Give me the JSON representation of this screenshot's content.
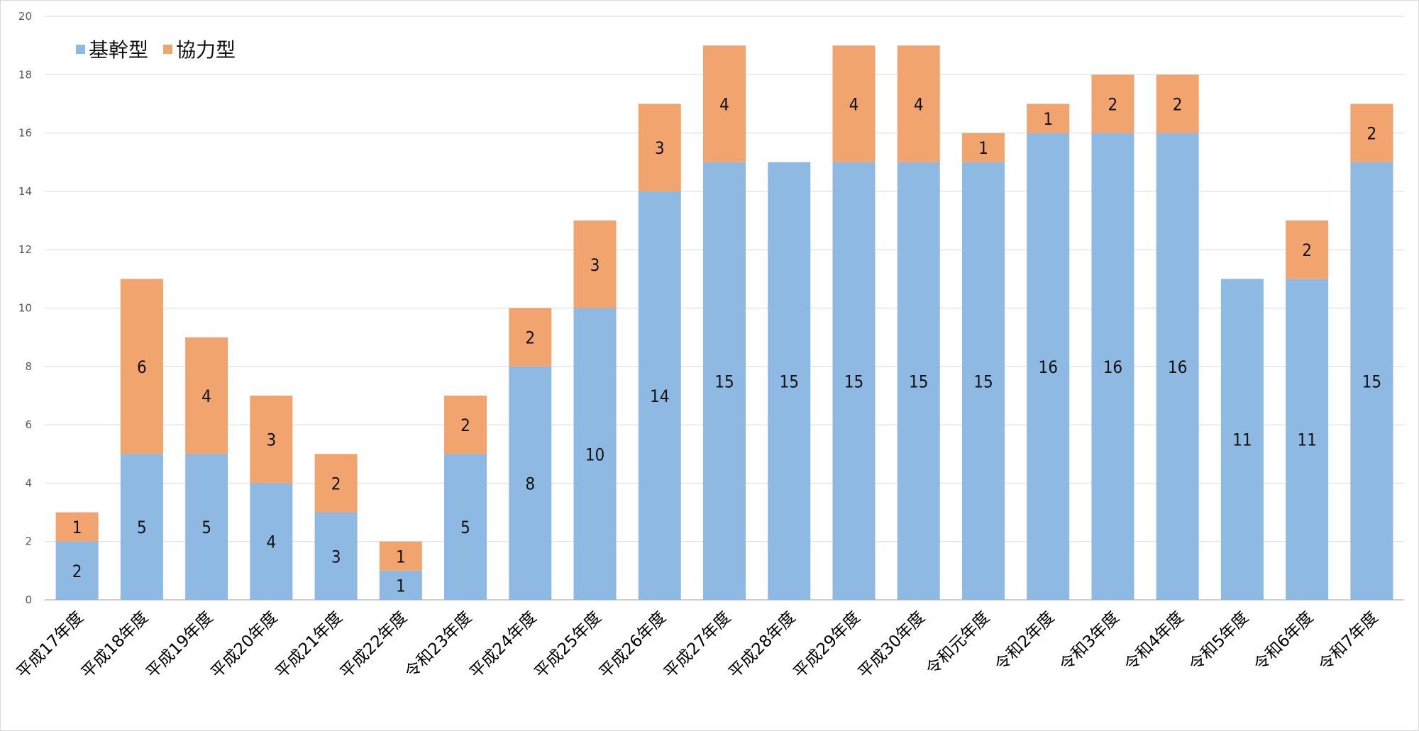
{
  "chart_data": {
    "type": "bar",
    "stacked": true,
    "categories": [
      "平成17年度",
      "平成18年度",
      "平成19年度",
      "平成20年度",
      "平成21年度",
      "平成22年度",
      "令和23年度",
      "平成24年度",
      "平成25年度",
      "平成26年度",
      "平成27年度",
      "平成28年度",
      "平成29年度",
      "平成30年度",
      "令和元年度",
      "令和2年度",
      "令和3年度",
      "令和4年度",
      "令和5年度",
      "令和6年度",
      "令和7年度"
    ],
    "series": [
      {
        "name": "基幹型",
        "color": "#8db9e3",
        "values": [
          2,
          5,
          5,
          4,
          3,
          1,
          5,
          8,
          10,
          14,
          15,
          15,
          15,
          15,
          15,
          16,
          16,
          16,
          11,
          11,
          15
        ]
      },
      {
        "name": "協力型",
        "color": "#f2a46f",
        "values": [
          1,
          6,
          4,
          3,
          2,
          1,
          2,
          2,
          3,
          3,
          4,
          0,
          4,
          4,
          1,
          1,
          2,
          2,
          0,
          2,
          2
        ]
      }
    ],
    "ylim": [
      0,
      20
    ],
    "yticks": [
      0,
      2,
      4,
      6,
      8,
      10,
      12,
      14,
      16,
      18,
      20
    ],
    "grid": true,
    "legend_position": "top-left",
    "title": "",
    "xlabel": "",
    "ylabel": ""
  }
}
